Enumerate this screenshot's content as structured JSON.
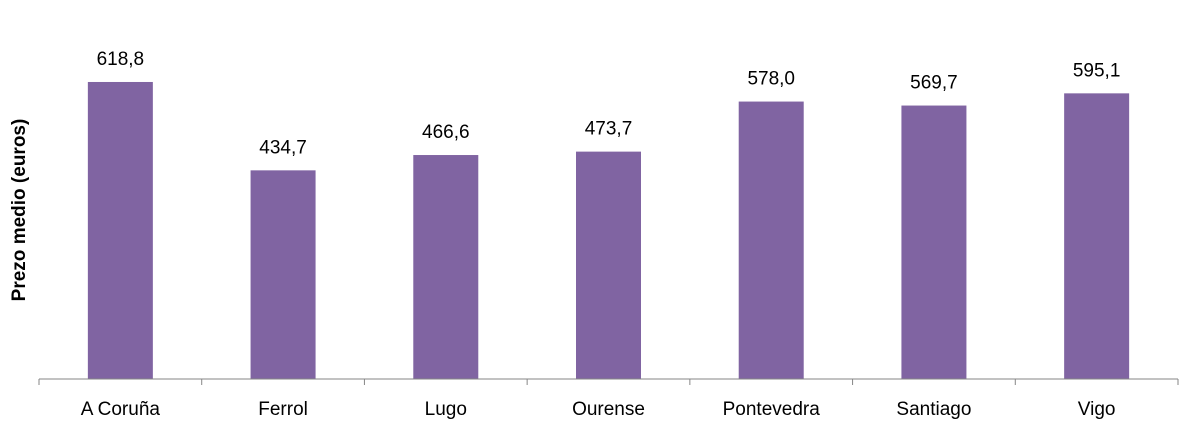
{
  "chart_data": {
    "type": "bar",
    "y_label": "Prezo medio (euros)",
    "categories": [
      "A Coruña",
      "Ferrol",
      "Lugo",
      "Ourense",
      "Pontevedra",
      "Santiago",
      "Vigo"
    ],
    "values": [
      618.8,
      434.7,
      466.6,
      473.7,
      578.0,
      569.7,
      595.1
    ],
    "value_labels": [
      "618,8",
      "434,7",
      "466,6",
      "473,7",
      "578,0",
      "569,7",
      "595,1"
    ],
    "color": "#8064a2",
    "ylim": [
      0,
      700
    ]
  }
}
